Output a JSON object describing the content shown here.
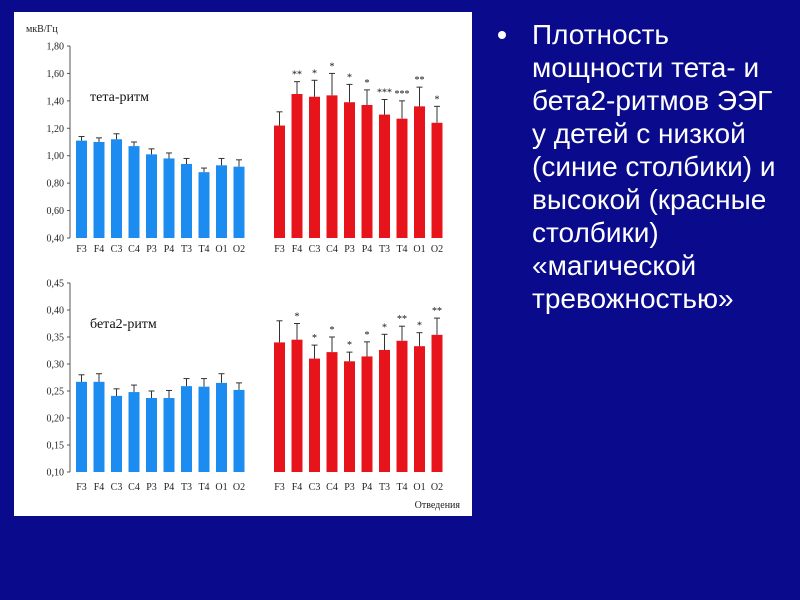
{
  "slide": {
    "bullet_text": "Плотность мощности тета- и бета2-ритмов ЭЭГ у детей с низкой (синие столбики) и высокой (красные столбики) «магической тревожностью»",
    "colors": {
      "background": "#0a0a8c",
      "panel": "#ffffff",
      "low_bars": "#1c8cf0",
      "high_bars": "#e8141c"
    }
  },
  "chart_data": [
    {
      "type": "bar",
      "title": "тета-ритм",
      "ylabel": "мкВ/Гц",
      "ylim": [
        0.4,
        1.8
      ],
      "yticks": [
        "0,40",
        "0,60",
        "0,80",
        "1,00",
        "1,20",
        "1,40",
        "1,60",
        "1,80"
      ],
      "categories": [
        "F3",
        "F4",
        "C3",
        "C4",
        "P3",
        "P4",
        "T3",
        "T4",
        "O1",
        "O2"
      ],
      "series": [
        {
          "values": [
            1.11,
            1.1,
            1.12,
            1.07,
            1.01,
            0.98,
            0.94,
            0.88,
            0.93,
            0.92
          ],
          "errors": [
            0.03,
            0.03,
            0.04,
            0.03,
            0.04,
            0.04,
            0.04,
            0.03,
            0.05,
            0.05
          ]
        },
        {
          "values": [
            1.22,
            1.45,
            1.43,
            1.44,
            1.39,
            1.37,
            1.3,
            1.27,
            1.36,
            1.24
          ],
          "errors": [
            0.1,
            0.09,
            0.12,
            0.16,
            0.13,
            0.11,
            0.11,
            0.13,
            0.14,
            0.12
          ],
          "significance": [
            "",
            "**",
            "*",
            "*",
            "*",
            "*",
            "***",
            "***",
            "**",
            "*"
          ]
        }
      ]
    },
    {
      "type": "bar",
      "title": "бета2-ритм",
      "ylim": [
        0.1,
        0.45
      ],
      "yticks": [
        "0,10",
        "0,15",
        "0,20",
        "0,25",
        "0,30",
        "0,35",
        "0,40",
        "0,45"
      ],
      "categories": [
        "F3",
        "F4",
        "C3",
        "C4",
        "P3",
        "P4",
        "T3",
        "T4",
        "O1",
        "O2"
      ],
      "xlabel": "Отведения",
      "series": [
        {
          "values": [
            0.267,
            0.267,
            0.241,
            0.248,
            0.237,
            0.237,
            0.259,
            0.258,
            0.265,
            0.252
          ],
          "errors": [
            0.013,
            0.015,
            0.013,
            0.013,
            0.013,
            0.014,
            0.014,
            0.015,
            0.017,
            0.013
          ]
        },
        {
          "values": [
            0.34,
            0.345,
            0.31,
            0.322,
            0.305,
            0.314,
            0.326,
            0.343,
            0.333,
            0.354
          ],
          "errors": [
            0.04,
            0.03,
            0.025,
            0.028,
            0.017,
            0.027,
            0.029,
            0.027,
            0.025,
            0.031
          ],
          "significance": [
            "",
            "*",
            "*",
            "*",
            "*",
            "*",
            "*",
            "**",
            "*",
            "**"
          ]
        }
      ]
    }
  ]
}
